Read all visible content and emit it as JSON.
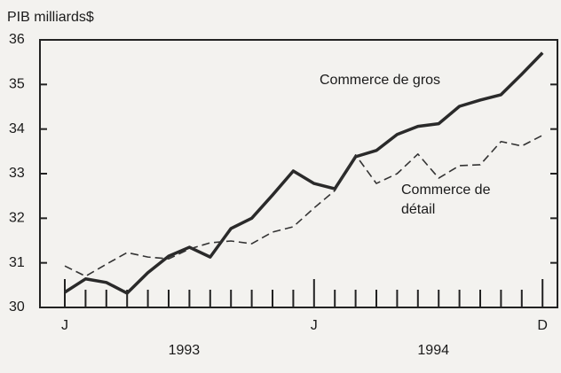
{
  "chart_data": {
    "type": "line",
    "y_label": "PIB milliards$",
    "categories": [
      "J",
      null,
      null,
      null,
      null,
      null,
      null,
      null,
      null,
      null,
      null,
      null,
      "J",
      null,
      null,
      null,
      null,
      null,
      null,
      null,
      null,
      null,
      null,
      "D"
    ],
    "year_labels": [
      "1993",
      "1994"
    ],
    "series": [
      {
        "name": "Commerce de gros",
        "color": "#2a2a2a",
        "style": "solid",
        "values": [
          30.34,
          30.64,
          30.56,
          30.32,
          30.78,
          31.15,
          31.35,
          31.13,
          31.77,
          32.0,
          32.52,
          33.06,
          32.78,
          32.66,
          33.38,
          33.52,
          33.88,
          34.06,
          34.12,
          34.51,
          34.65,
          34.77,
          35.23,
          35.71
        ]
      },
      {
        "name": "Commerce de détail",
        "color": "#333333",
        "style": "dashed",
        "values": [
          30.93,
          30.7,
          30.97,
          31.23,
          31.13,
          31.09,
          31.31,
          31.45,
          31.49,
          31.43,
          31.69,
          31.81,
          32.23,
          32.62,
          33.42,
          32.78,
          33.0,
          33.44,
          32.9,
          33.18,
          33.2,
          33.72,
          33.62,
          33.86
        ]
      }
    ],
    "ylim": [
      30,
      36
    ],
    "yticks": [
      30,
      31,
      32,
      33,
      34,
      35,
      36
    ]
  }
}
